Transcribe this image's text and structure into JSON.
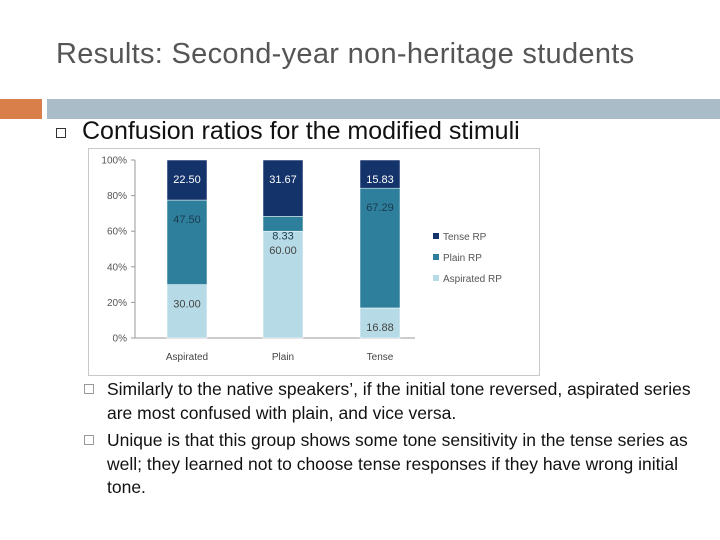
{
  "slide": {
    "title": "Results: Second-year non-heritage students",
    "main_bullet": "Confusion ratios for the modified stimuli",
    "sub_bullets": [
      "Similarly to the native speakers’, if the initial tone reversed, aspirated series are most confused with plain, and vice versa.",
      "Unique is that this group shows some tone sensitivity in the tense series as well; they learned not to choose tense responses if they have wrong initial tone."
    ],
    "colors": {
      "accent_orange": "#d9804a",
      "accent_blue": "#a9bcc8"
    }
  },
  "chart_data": {
    "type": "bar",
    "stacked": true,
    "categories": [
      "Aspirated",
      "Plain",
      "Tense"
    ],
    "series": [
      {
        "name": "Aspirated RP",
        "values": [
          30.0,
          60.0,
          16.88
        ],
        "labels": [
          "30.00",
          "60.00",
          "16.88"
        ],
        "color": "#b7dbe6"
      },
      {
        "name": "Plain RP",
        "values": [
          47.5,
          8.33,
          67.29
        ],
        "labels": [
          "47.50",
          "8.33",
          "67.29"
        ],
        "color": "#2e7f9c"
      },
      {
        "name": "Tense RP",
        "values": [
          22.5,
          31.67,
          15.83
        ],
        "labels": [
          "22.50",
          "31.67",
          "15.83"
        ],
        "color": "#14336a"
      }
    ],
    "legend_order": [
      "Tense RP",
      "Plain RP",
      "Aspirated RP"
    ],
    "y_ticks": [
      "0%",
      "20%",
      "40%",
      "60%",
      "80%",
      "100%"
    ],
    "ylim": [
      0,
      100
    ],
    "legend_position": "right",
    "grid": false
  }
}
